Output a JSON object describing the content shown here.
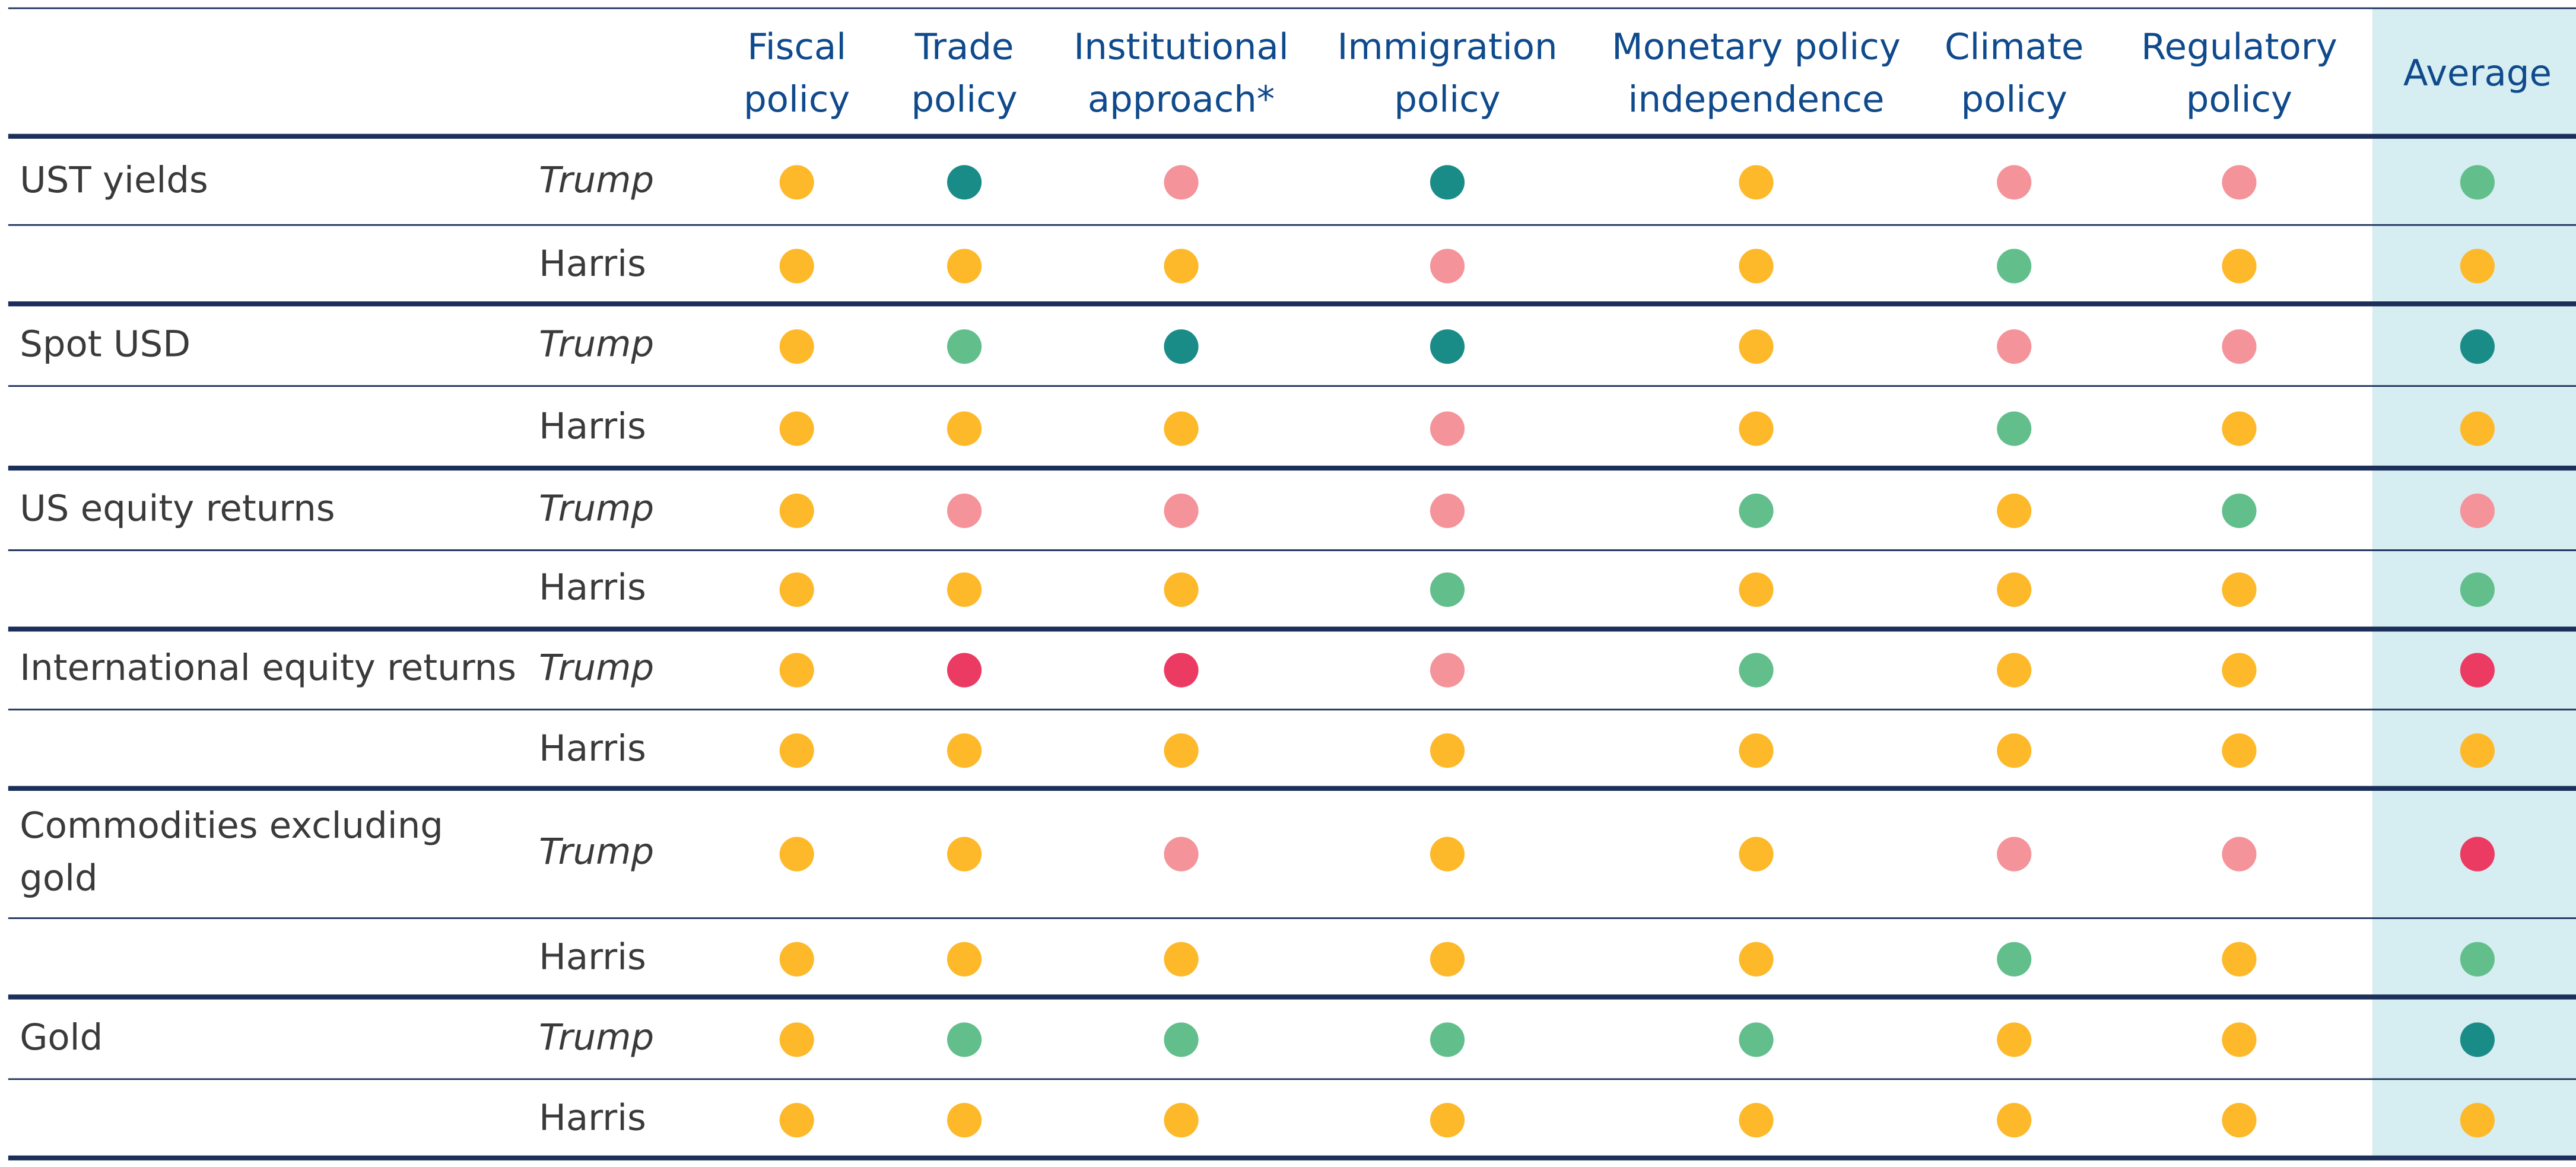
{
  "table": {
    "columns": [
      [
        "Fiscal",
        "policy"
      ],
      [
        "Trade",
        "policy"
      ],
      [
        "Institutional",
        "approach*"
      ],
      [
        "Immigration",
        "policy"
      ],
      [
        "Monetary policy",
        "independence"
      ],
      [
        "Climate",
        "policy"
      ],
      [
        "Regulatory",
        "policy"
      ],
      [
        "Average"
      ]
    ],
    "highlight_color": "#d6edf1",
    "groups": [
      {
        "asset": [
          "UST yields"
        ],
        "rows": [
          {
            "candidate": "Trump",
            "italic": true,
            "cells": [
              "#fdb92a",
              "#1a8c87",
              "#f4949a",
              "#1a8c87",
              "#fdb92a",
              "#f4949a",
              "#f4949a",
              "#62bf8c"
            ]
          },
          {
            "candidate": "Harris",
            "italic": false,
            "cells": [
              "#fdb92a",
              "#fdb92a",
              "#fdb92a",
              "#f4949a",
              "#fdb92a",
              "#62bf8c",
              "#fdb92a",
              "#fdb92a"
            ]
          }
        ]
      },
      {
        "asset": [
          "Spot USD"
        ],
        "rows": [
          {
            "candidate": "Trump",
            "italic": true,
            "cells": [
              "#fdb92a",
              "#62bf8c",
              "#1a8c87",
              "#1a8c87",
              "#fdb92a",
              "#f4949a",
              "#f4949a",
              "#1a8c87"
            ]
          },
          {
            "candidate": "Harris",
            "italic": false,
            "cells": [
              "#fdb92a",
              "#fdb92a",
              "#fdb92a",
              "#f4949a",
              "#fdb92a",
              "#62bf8c",
              "#fdb92a",
              "#fdb92a"
            ]
          }
        ]
      },
      {
        "asset": [
          "US equity returns"
        ],
        "rows": [
          {
            "candidate": "Trump",
            "italic": true,
            "cells": [
              "#fdb92a",
              "#f4949a",
              "#f4949a",
              "#f4949a",
              "#62bf8c",
              "#fdb92a",
              "#62bf8c",
              "#f4949a"
            ]
          },
          {
            "candidate": "Harris",
            "italic": false,
            "cells": [
              "#fdb92a",
              "#fdb92a",
              "#fdb92a",
              "#62bf8c",
              "#fdb92a",
              "#fdb92a",
              "#fdb92a",
              "#62bf8c"
            ]
          }
        ]
      },
      {
        "asset": [
          "International equity returns"
        ],
        "rows": [
          {
            "candidate": "Trump",
            "italic": true,
            "cells": [
              "#fdb92a",
              "#ec3b63",
              "#ec3b63",
              "#f4949a",
              "#62bf8c",
              "#fdb92a",
              "#fdb92a",
              "#ec3b63"
            ]
          },
          {
            "candidate": "Harris",
            "italic": false,
            "cells": [
              "#fdb92a",
              "#fdb92a",
              "#fdb92a",
              "#fdb92a",
              "#fdb92a",
              "#fdb92a",
              "#fdb92a",
              "#fdb92a"
            ]
          }
        ]
      },
      {
        "asset": [
          "Commodities excluding",
          "gold"
        ],
        "rows": [
          {
            "candidate": "Trump",
            "italic": true,
            "cells": [
              "#fdb92a",
              "#fdb92a",
              "#f4949a",
              "#fdb92a",
              "#fdb92a",
              "#f4949a",
              "#f4949a",
              "#ec3b63"
            ]
          },
          {
            "candidate": "Harris",
            "italic": false,
            "cells": [
              "#fdb92a",
              "#fdb92a",
              "#fdb92a",
              "#fdb92a",
              "#fdb92a",
              "#62bf8c",
              "#fdb92a",
              "#62bf8c"
            ]
          }
        ]
      },
      {
        "asset": [
          "Gold"
        ],
        "rows": [
          {
            "candidate": "Trump",
            "italic": true,
            "cells": [
              "#fdb92a",
              "#62bf8c",
              "#62bf8c",
              "#62bf8c",
              "#62bf8c",
              "#fdb92a",
              "#fdb92a",
              "#1a8c87"
            ]
          },
          {
            "candidate": "Harris",
            "italic": false,
            "cells": [
              "#fdb92a",
              "#fdb92a",
              "#fdb92a",
              "#fdb92a",
              "#fdb92a",
              "#fdb92a",
              "#fdb92a",
              "#fdb92a"
            ]
          }
        ]
      }
    ]
  }
}
